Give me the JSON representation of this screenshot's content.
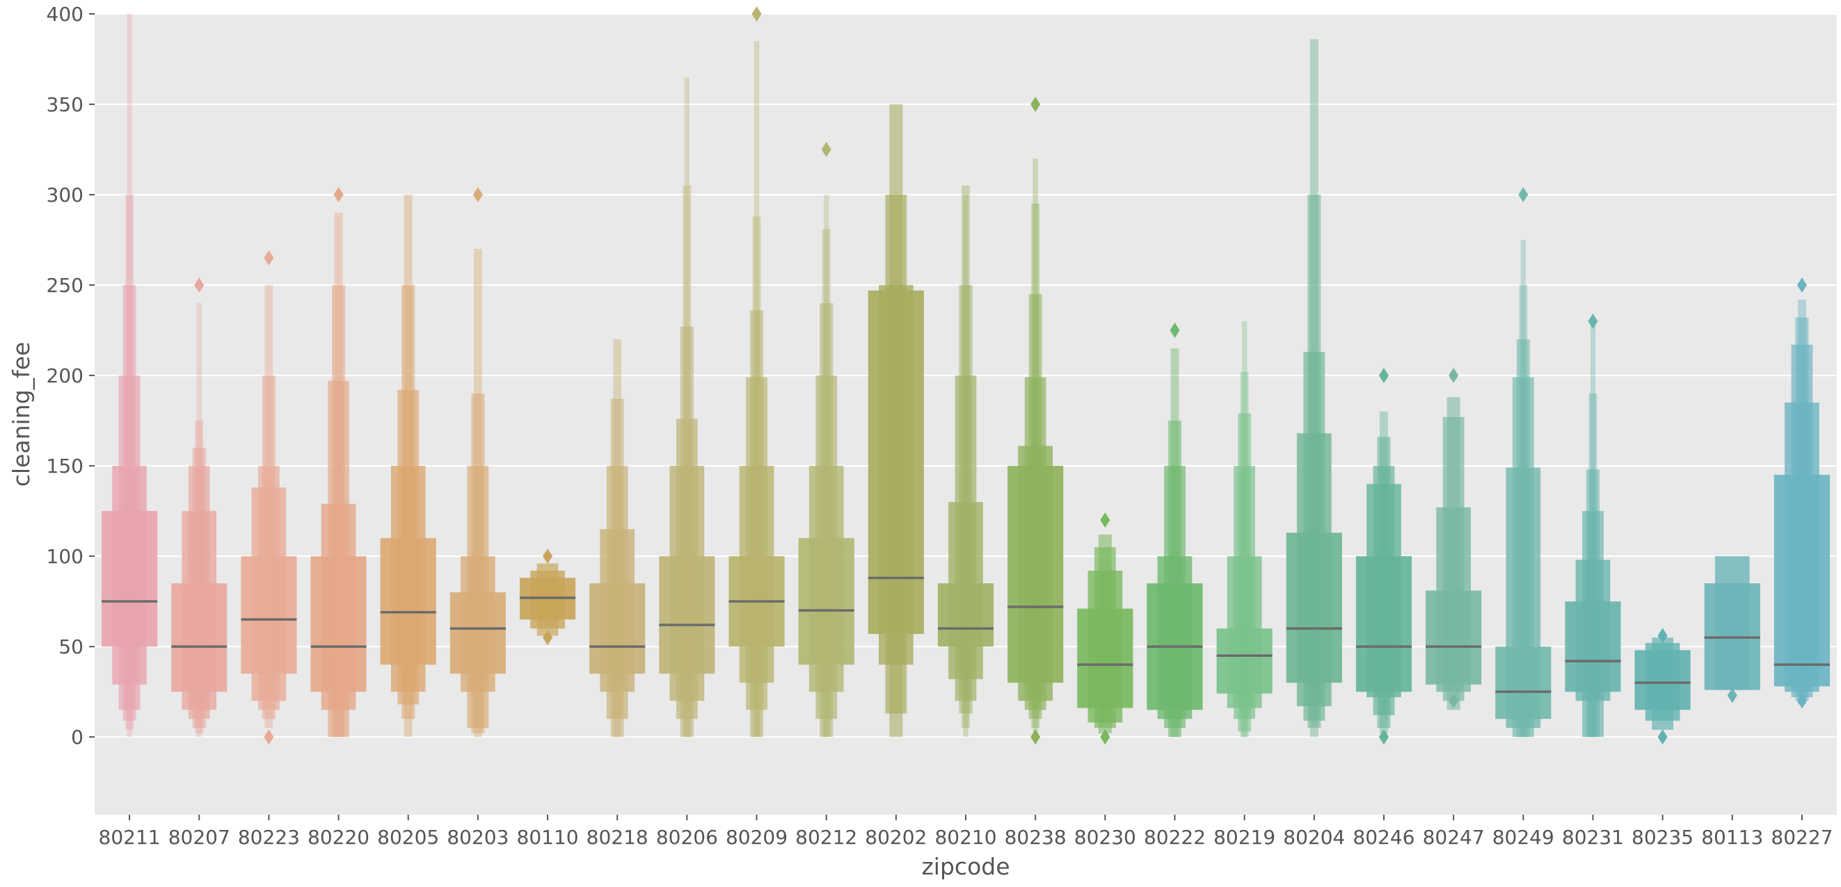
{
  "chart_data": {
    "type": "boxen",
    "xlabel": "zipcode",
    "ylabel": "cleaning_fee",
    "ylim": [
      -43,
      400
    ],
    "yticks": [
      0,
      50,
      100,
      150,
      200,
      250,
      300,
      350,
      400
    ],
    "grid": true,
    "background": "#e9e9e9",
    "categories": [
      "80211",
      "80207",
      "80223",
      "80220",
      "80205",
      "80203",
      "80110",
      "80218",
      "80206",
      "80209",
      "80212",
      "80202",
      "80210",
      "80238",
      "80230",
      "80222",
      "80219",
      "80204",
      "80246",
      "80247",
      "80249",
      "80231",
      "80235",
      "80113",
      "80227"
    ],
    "colors": [
      "#e8a4ae",
      "#e8a79f",
      "#e8ab96",
      "#e5a888",
      "#dca872",
      "#d8ac78",
      "#c8a55a",
      "#c8b278",
      "#bdb476",
      "#b8b46e",
      "#b2b672",
      "#a8ac5e",
      "#a0b266",
      "#8eb25c",
      "#7ab85e",
      "#6eb86e",
      "#7ac28c",
      "#6eb594",
      "#64b49a",
      "#78b8a2",
      "#72b8ac",
      "#68b4ac",
      "#62b2b0",
      "#6cb4b8",
      "#6ab4c2"
    ],
    "series": [
      {
        "median": 75,
        "boxes": [
          [
            50,
            125
          ],
          [
            29,
            150
          ],
          [
            15,
            200
          ],
          [
            9,
            250
          ],
          [
            4,
            300
          ],
          [
            0,
            400
          ]
        ],
        "outliers": []
      },
      {
        "median": 50,
        "boxes": [
          [
            25,
            85
          ],
          [
            15,
            125
          ],
          [
            10,
            150
          ],
          [
            5,
            160
          ],
          [
            2,
            175
          ],
          [
            0,
            240
          ]
        ],
        "outliers": [
          250
        ]
      },
      {
        "median": 65,
        "boxes": [
          [
            35,
            100
          ],
          [
            20,
            138
          ],
          [
            15,
            150
          ],
          [
            10,
            200
          ],
          [
            5,
            250
          ]
        ],
        "outliers": [
          265,
          0
        ]
      },
      {
        "median": 50,
        "boxes": [
          [
            25,
            100
          ],
          [
            15,
            129
          ],
          [
            0,
            197
          ],
          [
            0,
            250
          ],
          [
            0,
            290
          ]
        ],
        "outliers": [
          300
        ]
      },
      {
        "median": 69,
        "boxes": [
          [
            40,
            110
          ],
          [
            25,
            150
          ],
          [
            18,
            192
          ],
          [
            10,
            250
          ],
          [
            0,
            300
          ]
        ],
        "outliers": []
      },
      {
        "median": 60,
        "boxes": [
          [
            35,
            80
          ],
          [
            25,
            100
          ],
          [
            5,
            150
          ],
          [
            2,
            190
          ],
          [
            0,
            270
          ]
        ],
        "outliers": [
          300
        ]
      },
      {
        "median": 77,
        "boxes": [
          [
            65,
            88
          ],
          [
            60,
            92
          ],
          [
            56,
            96
          ]
        ],
        "outliers": [
          100,
          55
        ]
      },
      {
        "median": 50,
        "boxes": [
          [
            35,
            85
          ],
          [
            25,
            115
          ],
          [
            10,
            150
          ],
          [
            0,
            187
          ],
          [
            0,
            220
          ]
        ],
        "outliers": []
      },
      {
        "median": 62,
        "boxes": [
          [
            35,
            100
          ],
          [
            20,
            150
          ],
          [
            10,
            176
          ],
          [
            0,
            227
          ],
          [
            0,
            305
          ],
          [
            0,
            365
          ]
        ],
        "outliers": []
      },
      {
        "median": 75,
        "boxes": [
          [
            50,
            100
          ],
          [
            30,
            150
          ],
          [
            15,
            199
          ],
          [
            0,
            236
          ],
          [
            0,
            288
          ],
          [
            0,
            385
          ]
        ],
        "outliers": [
          400
        ]
      },
      {
        "median": 70,
        "boxes": [
          [
            40,
            110
          ],
          [
            25,
            150
          ],
          [
            10,
            200
          ],
          [
            0,
            240
          ],
          [
            0,
            281
          ],
          [
            0,
            300
          ]
        ],
        "outliers": [
          325
        ]
      },
      {
        "median": 88,
        "boxes": [
          [
            57,
            247
          ],
          [
            40,
            250
          ],
          [
            13,
            300
          ],
          [
            0,
            350
          ]
        ],
        "outliers": []
      },
      {
        "median": 60,
        "boxes": [
          [
            50,
            85
          ],
          [
            32,
            130
          ],
          [
            20,
            200
          ],
          [
            13,
            250
          ],
          [
            5,
            305
          ],
          [
            0,
            300
          ]
        ],
        "outliers": []
      },
      {
        "median": 72,
        "boxes": [
          [
            30,
            150
          ],
          [
            20,
            161
          ],
          [
            15,
            199
          ],
          [
            10,
            245
          ],
          [
            5,
            295
          ],
          [
            0,
            320
          ]
        ],
        "outliers": [
          350,
          0
        ]
      },
      {
        "median": 40,
        "boxes": [
          [
            16,
            71
          ],
          [
            8,
            92
          ],
          [
            5,
            105
          ],
          [
            2,
            112
          ]
        ],
        "outliers": [
          120,
          0
        ]
      },
      {
        "median": 50,
        "boxes": [
          [
            15,
            85
          ],
          [
            10,
            100
          ],
          [
            5,
            150
          ],
          [
            0,
            175
          ],
          [
            0,
            215
          ]
        ],
        "outliers": [
          225
        ]
      },
      {
        "median": 45,
        "boxes": [
          [
            24,
            60
          ],
          [
            16,
            100
          ],
          [
            10,
            150
          ],
          [
            3,
            179
          ],
          [
            0,
            202
          ],
          [
            0,
            230
          ]
        ],
        "outliers": []
      },
      {
        "median": 60,
        "boxes": [
          [
            30,
            113
          ],
          [
            17,
            168
          ],
          [
            9,
            213
          ],
          [
            5,
            300
          ],
          [
            0,
            386
          ]
        ],
        "outliers": []
      },
      {
        "median": 50,
        "boxes": [
          [
            25,
            100
          ],
          [
            22,
            140
          ],
          [
            12,
            150
          ],
          [
            5,
            166
          ],
          [
            2,
            180
          ]
        ],
        "outliers": [
          200,
          0
        ]
      },
      {
        "median": 50,
        "boxes": [
          [
            29,
            81
          ],
          [
            25,
            127
          ],
          [
            20,
            177
          ],
          [
            15,
            188
          ]
        ],
        "outliers": [
          200,
          20
        ]
      },
      {
        "median": 25,
        "boxes": [
          [
            10,
            50
          ],
          [
            5,
            149
          ],
          [
            0,
            199
          ],
          [
            0,
            220
          ],
          [
            0,
            250
          ],
          [
            0,
            275
          ]
        ],
        "outliers": [
          300
        ]
      },
      {
        "median": 42,
        "boxes": [
          [
            25,
            75
          ],
          [
            20,
            98
          ],
          [
            0,
            125
          ],
          [
            0,
            148
          ],
          [
            0,
            190
          ],
          [
            0,
            230
          ]
        ],
        "outliers": [
          230
        ]
      },
      {
        "median": 30,
        "boxes": [
          [
            15,
            48
          ],
          [
            9,
            52
          ],
          [
            4,
            55
          ]
        ],
        "outliers": [
          56,
          0
        ]
      },
      {
        "median": 55,
        "boxes": [
          [
            26,
            85
          ],
          [
            26,
            100
          ]
        ],
        "outliers": [
          23
        ]
      },
      {
        "median": 40,
        "boxes": [
          [
            28,
            145
          ],
          [
            25,
            185
          ],
          [
            22,
            217
          ],
          [
            20,
            232
          ],
          [
            18,
            242
          ]
        ],
        "outliers": [
          250,
          20
        ]
      }
    ]
  }
}
